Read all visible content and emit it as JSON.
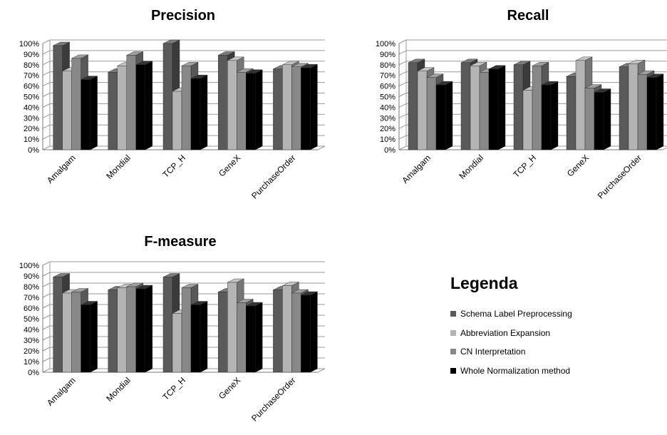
{
  "colors": [
    "#5a5a5a",
    "#b4b4b4",
    "#888888",
    "#000000"
  ],
  "legend": {
    "title": "Legenda",
    "items": [
      "Schema Label Preprocessing",
      "Abbreviation Expansion",
      "CN Interpretation",
      "Whole Normalization method"
    ]
  },
  "chart_data": [
    {
      "type": "bar",
      "title": "Precision",
      "categories": [
        "Amalgam",
        "Mondial",
        "TCP_H",
        "GeneX",
        "PurchaseOrder"
      ],
      "y_ticks": [
        "0%",
        "10%",
        "20%",
        "30%",
        "40%",
        "50%",
        "60%",
        "70%",
        "80%",
        "90%",
        "100%"
      ],
      "ylim": [
        0,
        100
      ],
      "grid": true,
      "series": [
        {
          "name": "Schema Label Preprocessing",
          "values": [
            98,
            73,
            100,
            89,
            76
          ]
        },
        {
          "name": "Abbreviation Expansion",
          "values": [
            74,
            79,
            55,
            84,
            80
          ]
        },
        {
          "name": "CN Interpretation",
          "values": [
            86,
            89,
            79,
            73,
            78
          ]
        },
        {
          "name": "Whole Normalization method",
          "values": [
            66,
            80,
            67,
            72,
            77
          ]
        }
      ]
    },
    {
      "type": "bar",
      "title": "Recall",
      "categories": [
        "Amalgam",
        "Mondial",
        "TCP_H",
        "GeneX",
        "PurchaseOrder"
      ],
      "y_ticks": [
        "0%",
        "10%",
        "20%",
        "30%",
        "40%",
        "50%",
        "60%",
        "70%",
        "80%",
        "90%",
        "100%"
      ],
      "ylim": [
        0,
        100
      ],
      "grid": true,
      "series": [
        {
          "name": "Schema Label Preprocessing",
          "values": [
            82,
            82,
            80,
            69,
            78
          ]
        },
        {
          "name": "Abbreviation Expansion",
          "values": [
            74,
            79,
            56,
            84,
            81
          ]
        },
        {
          "name": "CN Interpretation",
          "values": [
            68,
            73,
            79,
            58,
            71
          ]
        },
        {
          "name": "Whole Normalization method",
          "values": [
            61,
            76,
            61,
            54,
            68
          ]
        }
      ]
    },
    {
      "type": "bar",
      "title": "F-measure",
      "categories": [
        "Amalgam",
        "Mondial",
        "TCP_H",
        "GeneX",
        "PurchaseOrder"
      ],
      "y_ticks": [
        "0%",
        "10%",
        "20%",
        "30%",
        "40%",
        "50%",
        "60%",
        "70%",
        "80%",
        "90%",
        "100%"
      ],
      "ylim": [
        0,
        100
      ],
      "grid": true,
      "series": [
        {
          "name": "Schema Label Preprocessing",
          "values": [
            89,
            77,
            89,
            75,
            77
          ]
        },
        {
          "name": "Abbreviation Expansion",
          "values": [
            74,
            79,
            55,
            84,
            81
          ]
        },
        {
          "name": "CN Interpretation",
          "values": [
            75,
            80,
            79,
            65,
            74
          ]
        },
        {
          "name": "Whole Normalization method",
          "values": [
            63,
            78,
            63,
            62,
            72
          ]
        }
      ]
    }
  ]
}
